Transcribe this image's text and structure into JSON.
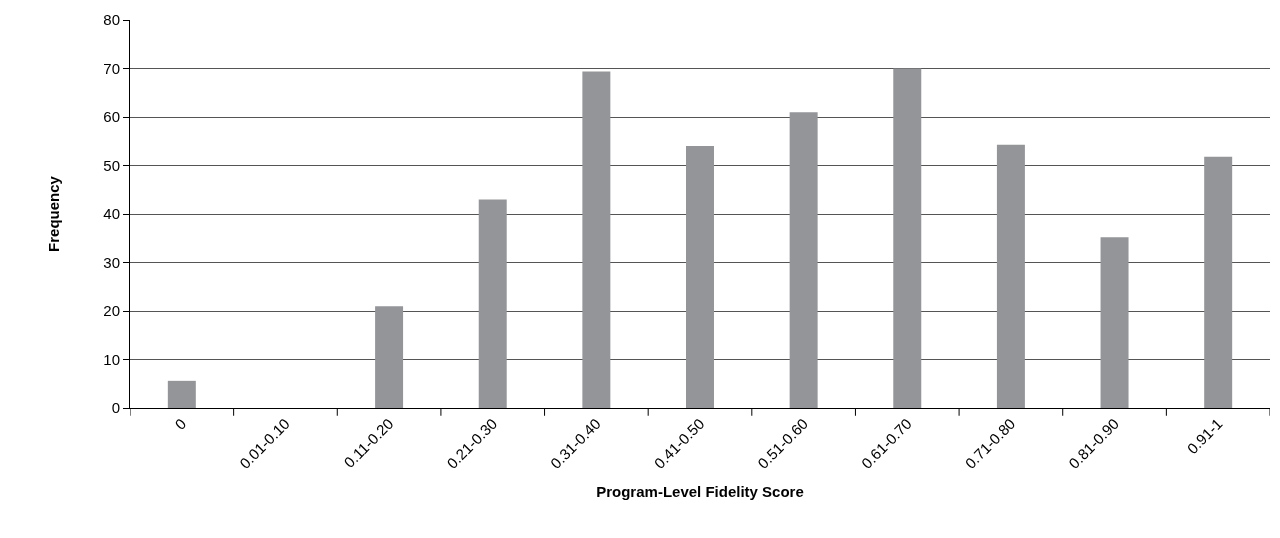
{
  "chart_data": {
    "type": "bar",
    "xlabel": "Program-Level Fidelity Score",
    "ylabel": "Frequency",
    "categories": [
      "0",
      "0.01-0.10",
      "0.11-0.20",
      "0.21-0.30",
      "0.31-0.40",
      "0.41-0.50",
      "0.51-0.60",
      "0.61-0.70",
      "0.71-0.80",
      "0.81-0.90",
      "0.91-1"
    ],
    "values": [
      5.6,
      0,
      21,
      43,
      69.4,
      54,
      61,
      70,
      54.3,
      35.2,
      51.8
    ],
    "color": "#939598",
    "ylim": [
      0,
      80
    ],
    "yticks": [
      0,
      10,
      20,
      30,
      40,
      50,
      60,
      70,
      80
    ],
    "grid": "y"
  }
}
